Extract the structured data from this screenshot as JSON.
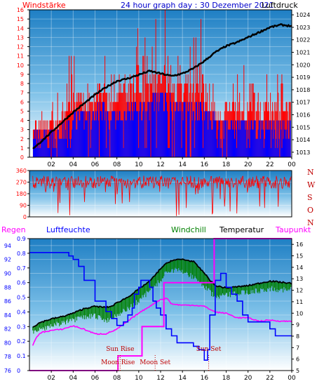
{
  "header": {
    "left_label": "Windstärke",
    "title": "24 hour graph day : 30 Dezember 2021",
    "right_label": "Luftdruck"
  },
  "colors": {
    "wind": "#ff0000",
    "gust": "#ff0000",
    "wind_low": "#0000ff",
    "pressure": "#000000",
    "direction": "#ff0000",
    "humidity": "#0000ff",
    "windchill": "#008000",
    "temperature": "#000000",
    "dewpoint": "#ff00ff",
    "rain": "#ff00ff",
    "compass": "#c00000",
    "events": "#c00000"
  },
  "chart_data": [
    {
      "type": "line",
      "panel": "wind_pressure",
      "x_ticks": [
        "02",
        "04",
        "06",
        "08",
        "10",
        "12",
        "14",
        "16",
        "18",
        "20",
        "22",
        "00"
      ],
      "y_left_ticks": [
        "0",
        "1",
        "2",
        "3",
        "4",
        "5",
        "6",
        "7",
        "8",
        "9",
        "10",
        "11",
        "12",
        "13",
        "14",
        "15",
        "16"
      ],
      "y_right_ticks": [
        "1013",
        "1014",
        "1015",
        "1016",
        "1017",
        "1018",
        "1019",
        "1020",
        "1021",
        "1022",
        "1023",
        "1024"
      ],
      "ylim_left": [
        0,
        16
      ],
      "ylim_right": [
        1012.6,
        1024.4
      ],
      "pressure": {
        "x": [
          0.3,
          1,
          2,
          3,
          4,
          5,
          6,
          7,
          8,
          9,
          10,
          11,
          12,
          13,
          14,
          15,
          16,
          17,
          18,
          19,
          20,
          21,
          22,
          23,
          24
        ],
        "values": [
          1013.3,
          1013.8,
          1014.6,
          1015.4,
          1016.2,
          1016.9,
          1017.6,
          1018.2,
          1018.7,
          1018.9,
          1019.2,
          1019.5,
          1019.3,
          1019.1,
          1019.3,
          1019.7,
          1020.3,
          1021.0,
          1021.5,
          1021.8,
          1022.2,
          1022.6,
          1023.0,
          1023.2,
          1023.1
        ]
      },
      "wind_level_hourly": [
        3,
        3,
        3,
        4,
        5,
        5,
        6,
        5,
        5,
        6,
        6,
        7,
        7,
        6,
        6,
        6,
        5,
        4,
        4,
        4,
        4,
        4,
        4,
        4
      ],
      "gust_peak_hourly": [
        4,
        5,
        7,
        11,
        11,
        9,
        12,
        10,
        13,
        15,
        13,
        16,
        17,
        13,
        14,
        17,
        9,
        6,
        9,
        11,
        9,
        10,
        9,
        11
      ]
    },
    {
      "type": "scatter",
      "panel": "wind_direction",
      "y_ticks": [
        "0",
        "90",
        "180",
        "270",
        "360"
      ],
      "ylim": [
        0,
        360
      ],
      "compass_labels": [
        "N",
        "W",
        "S",
        "O",
        "N"
      ],
      "typical_range": [
        220,
        320
      ]
    },
    {
      "type": "line",
      "panel": "climate",
      "labels": {
        "rain": "Regen",
        "humidity": "Luftfeuchte",
        "windchill": "Windchill",
        "temperature": "Temperatur",
        "dewpoint": "Taupunkt"
      },
      "y_humidity_ticks": [
        "76",
        "78",
        "80",
        "82",
        "84",
        "86",
        "88",
        "90",
        "92",
        "94"
      ],
      "ylim_humidity": [
        76,
        95
      ],
      "y_rain_ticks": [
        "0",
        "0.1",
        "0.2",
        "0.3",
        "0.4",
        "0.5",
        "0.6",
        "0.7",
        "0.8",
        "0.9"
      ],
      "ylim_rain": [
        0,
        0.9
      ],
      "y_temp_ticks": [
        "5",
        "6",
        "7",
        "8",
        "9",
        "10",
        "11",
        "12",
        "13",
        "14",
        "15",
        "16"
      ],
      "ylim_temp": [
        5,
        16.5
      ],
      "humidity": {
        "x": [
          0,
          3,
          3.6,
          4,
          4.5,
          5,
          6,
          7,
          7.5,
          8,
          8.6,
          9,
          9.4,
          9.6,
          10,
          10.2,
          10.5,
          11,
          11.3,
          11.6,
          12,
          12.5,
          13,
          13.5,
          14,
          14.5,
          15,
          15.5,
          16,
          16.3,
          16.5,
          17,
          17.5,
          18,
          18.5,
          19,
          19.5,
          20,
          21,
          22,
          22.5,
          24
        ],
        "values": [
          93,
          93,
          92.5,
          92,
          91,
          89,
          86,
          84.5,
          83.5,
          82.5,
          83,
          84,
          85,
          87,
          88,
          89,
          89,
          88,
          86,
          85,
          84,
          82,
          81,
          80,
          80,
          80,
          79.5,
          79,
          77.5,
          79,
          84,
          89,
          90,
          88,
          87,
          86,
          84,
          83,
          83,
          82,
          81,
          81
        ]
      },
      "temperature": {
        "x": [
          0.3,
          1,
          2,
          3,
          4,
          5,
          6,
          7,
          7.5,
          8,
          9,
          10,
          11,
          11.5,
          12,
          12.5,
          13,
          14,
          15,
          16,
          16.5,
          17,
          18,
          19,
          20,
          21,
          22,
          23,
          24
        ],
        "values": [
          8.8,
          9.2,
          9.5,
          9.7,
          10.0,
          10.4,
          10.6,
          10.5,
          10.6,
          10.9,
          11.4,
          12.1,
          12.8,
          13.3,
          13.9,
          14.3,
          14.6,
          14.7,
          14.5,
          13.5,
          12.9,
          12.4,
          12.2,
          12.3,
          12.4,
          12.6,
          12.8,
          12.7,
          12.6
        ]
      },
      "windchill": {
        "x": [
          0.3,
          1,
          2,
          3,
          4,
          5,
          6,
          7,
          8,
          9,
          10,
          11,
          12,
          12.5,
          13,
          14,
          15,
          16,
          17,
          18,
          19,
          20,
          21,
          22,
          23,
          24
        ],
        "values": [
          8.6,
          8.8,
          9.2,
          9.4,
          9.6,
          9.9,
          10.0,
          9.6,
          10.1,
          10.6,
          11.3,
          12.2,
          13.1,
          13.8,
          14.0,
          13.9,
          13.4,
          12.6,
          11.6,
          11.8,
          12.0,
          12.1,
          12.2,
          12.4,
          12.3,
          12.3
        ]
      },
      "dewpoint": {
        "x": [
          0.3,
          0.6,
          1,
          2,
          3,
          4,
          5,
          6,
          7,
          8,
          9,
          10,
          11,
          12,
          12.6,
          13,
          14,
          15,
          16,
          17,
          18,
          19,
          20,
          21,
          22,
          23,
          24
        ],
        "values": [
          7.2,
          7.8,
          8.3,
          8.5,
          8.6,
          8.9,
          8.6,
          8.2,
          8.2,
          8.6,
          9.3,
          10.0,
          10.6,
          11.2,
          11.3,
          10.8,
          10.7,
          10.7,
          10.6,
          10.1,
          10.0,
          9.6,
          9.6,
          9.3,
          9.4,
          9.3,
          9.3
        ]
      },
      "rain": {
        "x": [
          0,
          8.1,
          8.1,
          10.3,
          10.3,
          12.3,
          12.3,
          16.9,
          16.9,
          24
        ],
        "values": [
          0,
          0,
          0.1,
          0.1,
          0.3,
          0.3,
          0.6,
          0.6,
          0.9,
          0.9
        ]
      },
      "events": [
        {
          "label": "Moon Rise",
          "hour": 8.1
        },
        {
          "label": "Sun Rise",
          "hour": 8.3
        },
        {
          "label": "Moon Set",
          "hour": 11.5
        },
        {
          "label": "Sun Set",
          "hour": 16.4
        }
      ]
    }
  ]
}
